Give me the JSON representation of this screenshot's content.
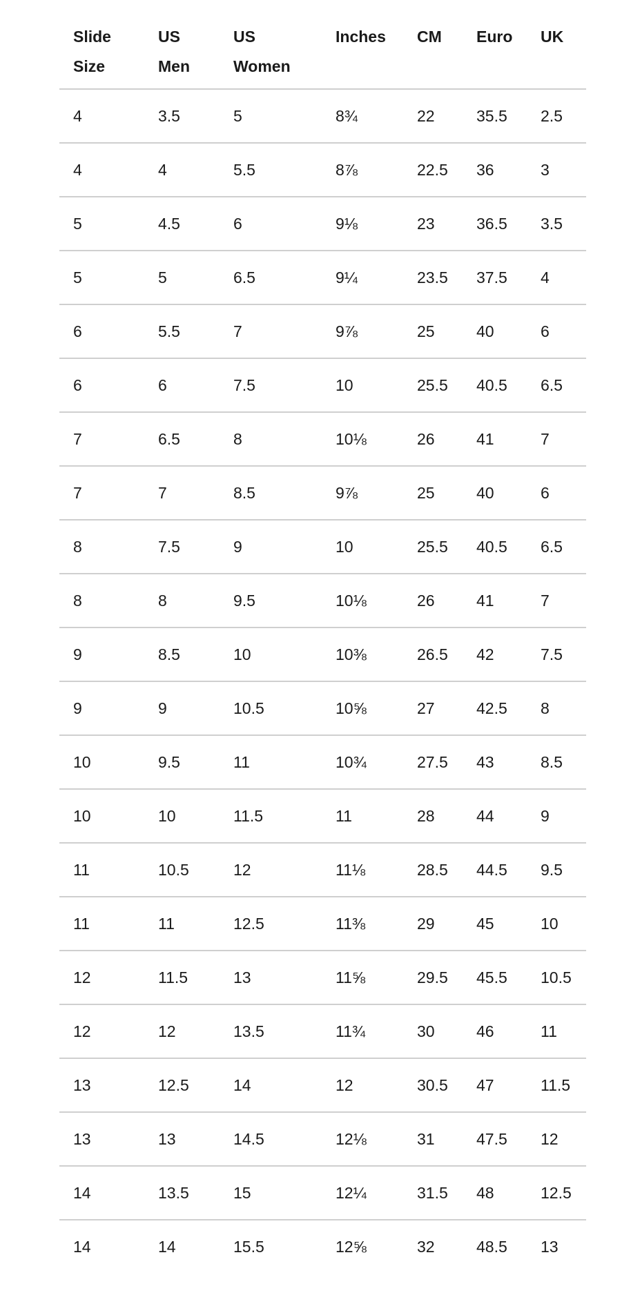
{
  "table": {
    "headers": [
      [
        "Slide",
        "Size"
      ],
      [
        "US",
        "Men"
      ],
      [
        "US",
        "Women"
      ],
      [
        "Inches",
        ""
      ],
      [
        "CM",
        ""
      ],
      [
        "Euro",
        ""
      ],
      [
        "UK",
        ""
      ]
    ],
    "rows": [
      [
        "4",
        "3.5",
        "5",
        "8¾",
        "22",
        "35.5",
        "2.5"
      ],
      [
        "4",
        "4",
        "5.5",
        "8⅞",
        "22.5",
        "36",
        "3"
      ],
      [
        "5",
        "4.5",
        "6",
        "9⅛",
        "23",
        "36.5",
        "3.5"
      ],
      [
        "5",
        "5",
        "6.5",
        "9¼",
        "23.5",
        "37.5",
        "4"
      ],
      [
        "6",
        "5.5",
        "7",
        "9⅞",
        "25",
        "40",
        "6"
      ],
      [
        "6",
        "6",
        "7.5",
        "10",
        "25.5",
        "40.5",
        "6.5"
      ],
      [
        "7",
        "6.5",
        "8",
        "10⅛",
        "26",
        "41",
        "7"
      ],
      [
        "7",
        "7",
        "8.5",
        "9⅞",
        "25",
        "40",
        "6"
      ],
      [
        "8",
        "7.5",
        "9",
        "10",
        "25.5",
        "40.5",
        "6.5"
      ],
      [
        "8",
        "8",
        "9.5",
        "10⅛",
        "26",
        "41",
        "7"
      ],
      [
        "9",
        "8.5",
        "10",
        "10⅜",
        "26.5",
        "42",
        "7.5"
      ],
      [
        "9",
        "9",
        "10.5",
        "10⅝",
        "27",
        "42.5",
        "8"
      ],
      [
        "10",
        "9.5",
        "11",
        "10¾",
        "27.5",
        "43",
        "8.5"
      ],
      [
        "10",
        "10",
        "11.5",
        "11",
        "28",
        "44",
        "9"
      ],
      [
        "11",
        "10.5",
        "12",
        "11⅛",
        "28.5",
        "44.5",
        "9.5"
      ],
      [
        "11",
        "11",
        "12.5",
        "11⅜",
        "29",
        "45",
        "10"
      ],
      [
        "12",
        "11.5",
        "13",
        "11⅝",
        "29.5",
        "45.5",
        "10.5"
      ],
      [
        "12",
        "12",
        "13.5",
        "11¾",
        "30",
        "46",
        "11"
      ],
      [
        "13",
        "12.5",
        "14",
        "12",
        "30.5",
        "47",
        "11.5"
      ],
      [
        "13",
        "13",
        "14.5",
        "12⅛",
        "31",
        "47.5",
        "12"
      ],
      [
        "14",
        "13.5",
        "15",
        "12¼",
        "31.5",
        "48",
        "12.5"
      ],
      [
        "14",
        "14",
        "15.5",
        "12⅝",
        "32",
        "48.5",
        "13"
      ]
    ]
  }
}
